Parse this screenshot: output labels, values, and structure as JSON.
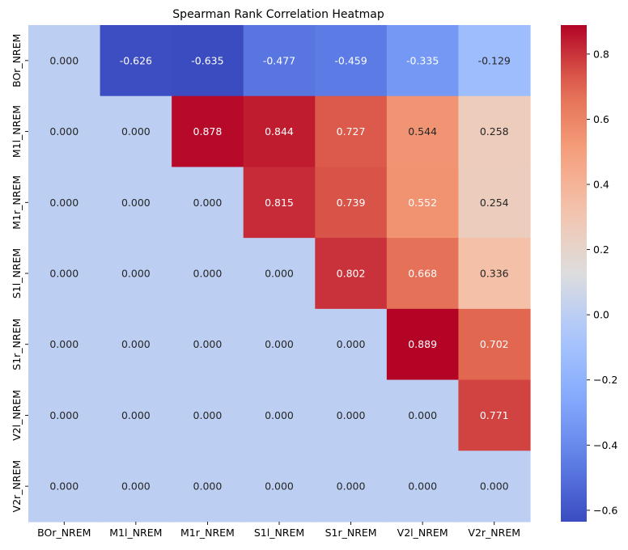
{
  "chart_data": {
    "type": "heatmap",
    "title": "Spearman Rank Correlation Heatmap",
    "xlabel": "",
    "ylabel": "",
    "x_categories": [
      "BOr_NREM",
      "M1l_NREM",
      "M1r_NREM",
      "S1l_NREM",
      "S1r_NREM",
      "V2l_NREM",
      "V2r_NREM"
    ],
    "y_categories": [
      "BOr_NREM",
      "M1l_NREM",
      "M1r_NREM",
      "S1l_NREM",
      "S1r_NREM",
      "V2l_NREM",
      "V2r_NREM"
    ],
    "values": [
      [
        0.0,
        -0.626,
        -0.635,
        -0.477,
        -0.459,
        -0.335,
        -0.129
      ],
      [
        0.0,
        0.0,
        0.878,
        0.844,
        0.727,
        0.544,
        0.258
      ],
      [
        0.0,
        0.0,
        0.0,
        0.815,
        0.739,
        0.552,
        0.254
      ],
      [
        0.0,
        0.0,
        0.0,
        0.0,
        0.802,
        0.668,
        0.336
      ],
      [
        0.0,
        0.0,
        0.0,
        0.0,
        0.0,
        0.889,
        0.702
      ],
      [
        0.0,
        0.0,
        0.0,
        0.0,
        0.0,
        0.0,
        0.771
      ],
      [
        0.0,
        0.0,
        0.0,
        0.0,
        0.0,
        0.0,
        0.0
      ]
    ],
    "value_format": "3 decimals",
    "colormap": "coolwarm",
    "vmin": -0.635,
    "vmax": 0.889,
    "colorbar": {
      "ticks": [
        -0.6,
        -0.4,
        -0.2,
        0.0,
        0.2,
        0.4,
        0.6,
        0.8
      ],
      "tick_labels": [
        "−0.6",
        "−0.4",
        "−0.2",
        "0.0",
        "0.2",
        "0.4",
        "0.6",
        "0.8"
      ],
      "placement": "right"
    },
    "grid": false
  }
}
